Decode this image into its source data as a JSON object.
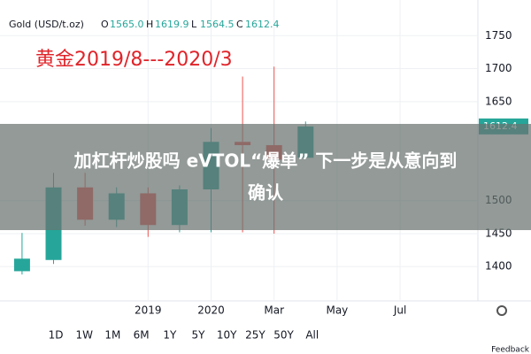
{
  "chart_data": {
    "type": "candlestick",
    "title": "Gold (USD/t.oz)",
    "ohlc_legend": [
      {
        "name": "O",
        "value": "1565.0"
      },
      {
        "name": "H",
        "value": "1619.9"
      },
      {
        "name": "L",
        "value": "1564.5"
      },
      {
        "name": "C",
        "value": "1612.4"
      }
    ],
    "annotation": "黄金2019/8---2020/3",
    "last_price_label": "1612.4",
    "open": [
      1393,
      1410,
      1520,
      1471,
      1511,
      1463,
      1517,
      1589,
      1584,
      1565
    ],
    "high": [
      1451,
      1542,
      1542,
      1520,
      1520,
      1523,
      1610,
      1688,
      1703,
      1619.9
    ],
    "low": [
      1388,
      1404,
      1462,
      1460,
      1445,
      1452,
      1452,
      1452,
      1450,
      1564.5
    ],
    "close": [
      1412,
      1520,
      1471,
      1511,
      1463,
      1517,
      1589,
      1584,
      1562,
      1612.4
    ],
    "up_color": "#26a69a",
    "down_color": "#ef5350",
    "xlim": [
      -0.7,
      14.47
    ],
    "xticks": [
      {
        "value": 4,
        "label": "2019"
      },
      {
        "value": 6,
        "label": "2020"
      },
      {
        "value": 8,
        "label": "Mar"
      },
      {
        "value": 10,
        "label": "May"
      },
      {
        "value": 12,
        "label": "Jul"
      }
    ],
    "ylim": [
      1348,
      1804
    ],
    "yticks": [
      1400,
      1450,
      1500,
      1650,
      1700,
      1750
    ],
    "grid": true
  },
  "time_ranges": [
    "1D",
    "1W",
    "1M",
    "6M",
    "1Y",
    "5Y",
    "10Y",
    "25Y",
    "50Y",
    "All"
  ],
  "feedback": "Feedback",
  "banner": {
    "line1": "加杠杆炒股吗 eVTOL“爆单” 下一步是从意向到",
    "line2": "确认"
  }
}
